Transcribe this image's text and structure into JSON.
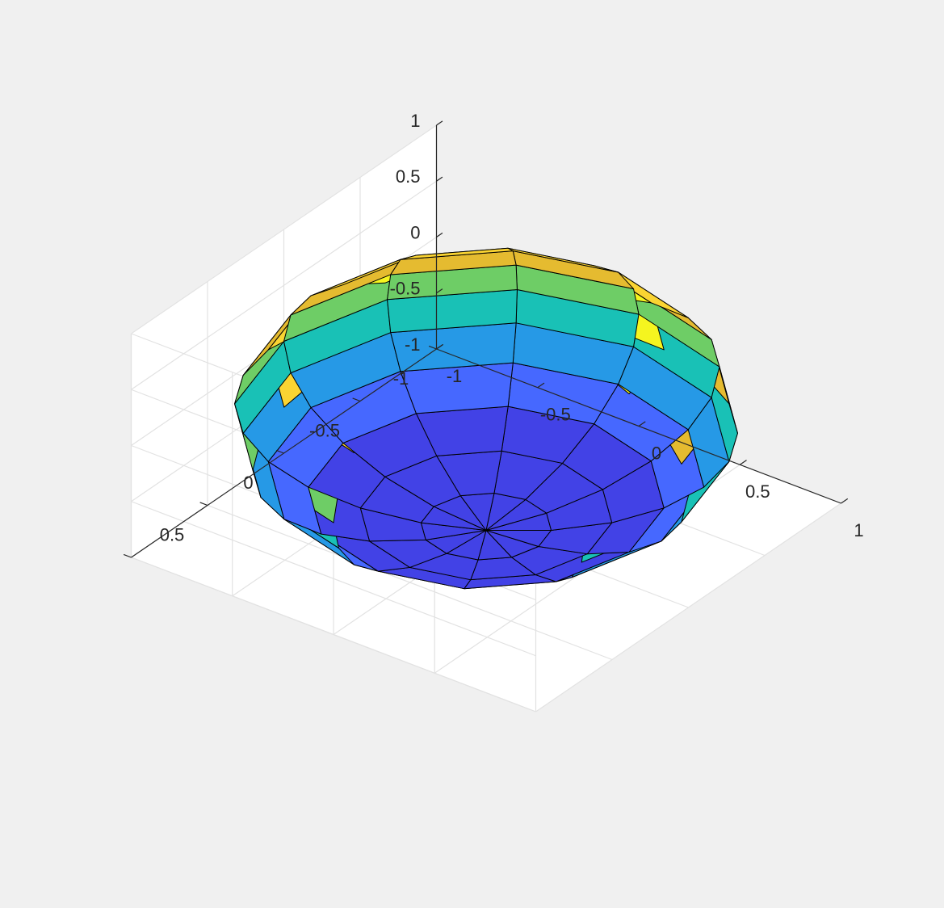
{
  "chart_data": {
    "type": "surface",
    "title": "",
    "xlabel": "",
    "ylabel": "",
    "zlabel": "",
    "grid": true,
    "surface": {
      "kind": "sphere",
      "n": 12,
      "radius": 1,
      "center": [
        0,
        0,
        0
      ],
      "colormap": "parula",
      "color_by": "z",
      "edgecolor": "#000000"
    },
    "view": {
      "azimuth": -37.5,
      "elevation": 30
    },
    "xlim": [
      -1,
      1
    ],
    "ylim": [
      -1,
      1
    ],
    "zlim": [
      -1,
      1
    ],
    "x_ticks": [
      -1,
      -0.5,
      0,
      0.5,
      1
    ],
    "y_ticks": [
      -1,
      -0.5,
      0,
      0.5
    ],
    "z_ticks": [
      -1,
      -0.5,
      0,
      0.5,
      1
    ],
    "x_tick_labels": [
      "-1",
      "-0.5",
      "0",
      "0.5",
      "1"
    ],
    "y_tick_labels": [
      "-1",
      "-0.5",
      "0",
      "0.5"
    ],
    "z_tick_labels": [
      "-1",
      "-0.5",
      "0",
      "0.5",
      "1"
    ],
    "band_colors": [
      "#4242e6",
      "#4668ff",
      "#2699e6",
      "#19c1b6",
      "#6ecd66",
      "#e5bb30",
      "#fad432",
      "#f5f51f"
    ]
  }
}
